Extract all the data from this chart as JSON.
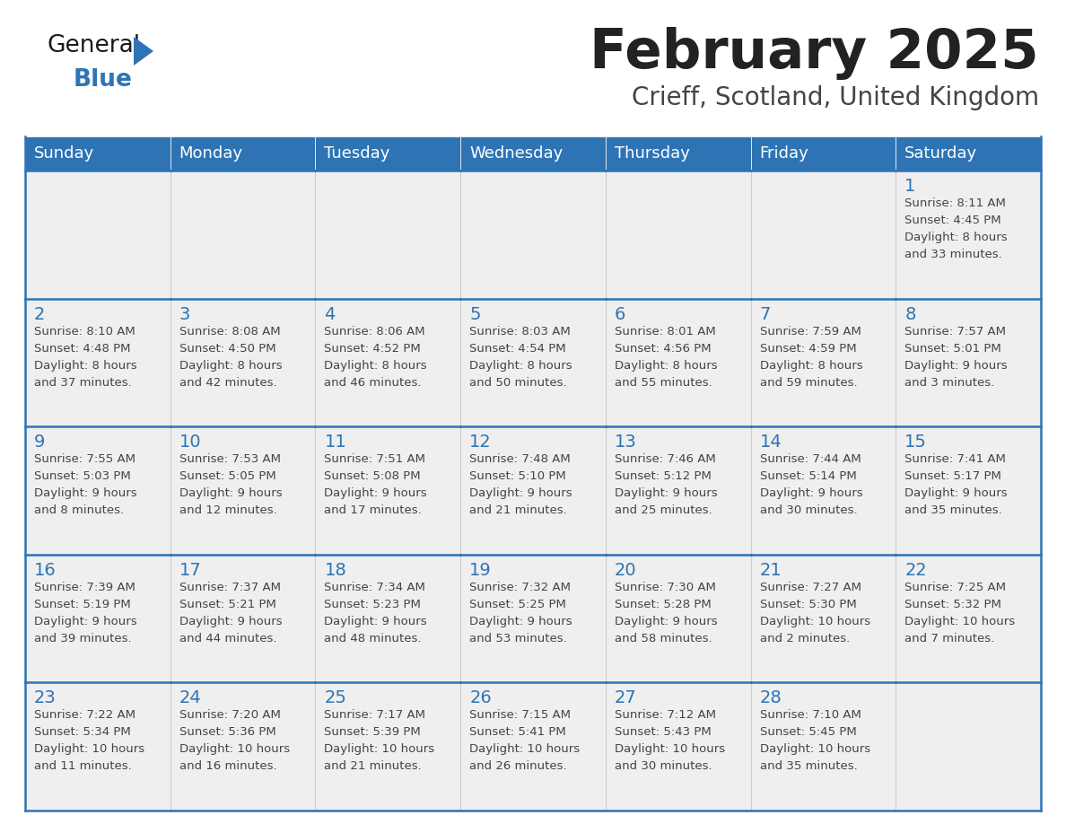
{
  "title": "February 2025",
  "subtitle": "Crieff, Scotland, United Kingdom",
  "days_of_week": [
    "Sunday",
    "Monday",
    "Tuesday",
    "Wednesday",
    "Thursday",
    "Friday",
    "Saturday"
  ],
  "header_bg": "#2E74B5",
  "header_text": "#FFFFFF",
  "cell_bg_light": "#EFEFEF",
  "cell_border": "#2E74B5",
  "day_num_color": "#2E74B5",
  "text_color": "#444444",
  "title_color": "#222222",
  "subtitle_color": "#444444",
  "calendar_data": [
    [
      {
        "day": null,
        "sunrise": null,
        "sunset": null,
        "daylight": null
      },
      {
        "day": null,
        "sunrise": null,
        "sunset": null,
        "daylight": null
      },
      {
        "day": null,
        "sunrise": null,
        "sunset": null,
        "daylight": null
      },
      {
        "day": null,
        "sunrise": null,
        "sunset": null,
        "daylight": null
      },
      {
        "day": null,
        "sunrise": null,
        "sunset": null,
        "daylight": null
      },
      {
        "day": null,
        "sunrise": null,
        "sunset": null,
        "daylight": null
      },
      {
        "day": 1,
        "sunrise": "8:11 AM",
        "sunset": "4:45 PM",
        "daylight": "8 hours\nand 33 minutes."
      }
    ],
    [
      {
        "day": 2,
        "sunrise": "8:10 AM",
        "sunset": "4:48 PM",
        "daylight": "8 hours\nand 37 minutes."
      },
      {
        "day": 3,
        "sunrise": "8:08 AM",
        "sunset": "4:50 PM",
        "daylight": "8 hours\nand 42 minutes."
      },
      {
        "day": 4,
        "sunrise": "8:06 AM",
        "sunset": "4:52 PM",
        "daylight": "8 hours\nand 46 minutes."
      },
      {
        "day": 5,
        "sunrise": "8:03 AM",
        "sunset": "4:54 PM",
        "daylight": "8 hours\nand 50 minutes."
      },
      {
        "day": 6,
        "sunrise": "8:01 AM",
        "sunset": "4:56 PM",
        "daylight": "8 hours\nand 55 minutes."
      },
      {
        "day": 7,
        "sunrise": "7:59 AM",
        "sunset": "4:59 PM",
        "daylight": "8 hours\nand 59 minutes."
      },
      {
        "day": 8,
        "sunrise": "7:57 AM",
        "sunset": "5:01 PM",
        "daylight": "9 hours\nand 3 minutes."
      }
    ],
    [
      {
        "day": 9,
        "sunrise": "7:55 AM",
        "sunset": "5:03 PM",
        "daylight": "9 hours\nand 8 minutes."
      },
      {
        "day": 10,
        "sunrise": "7:53 AM",
        "sunset": "5:05 PM",
        "daylight": "9 hours\nand 12 minutes."
      },
      {
        "day": 11,
        "sunrise": "7:51 AM",
        "sunset": "5:08 PM",
        "daylight": "9 hours\nand 17 minutes."
      },
      {
        "day": 12,
        "sunrise": "7:48 AM",
        "sunset": "5:10 PM",
        "daylight": "9 hours\nand 21 minutes."
      },
      {
        "day": 13,
        "sunrise": "7:46 AM",
        "sunset": "5:12 PM",
        "daylight": "9 hours\nand 25 minutes."
      },
      {
        "day": 14,
        "sunrise": "7:44 AM",
        "sunset": "5:14 PM",
        "daylight": "9 hours\nand 30 minutes."
      },
      {
        "day": 15,
        "sunrise": "7:41 AM",
        "sunset": "5:17 PM",
        "daylight": "9 hours\nand 35 minutes."
      }
    ],
    [
      {
        "day": 16,
        "sunrise": "7:39 AM",
        "sunset": "5:19 PM",
        "daylight": "9 hours\nand 39 minutes."
      },
      {
        "day": 17,
        "sunrise": "7:37 AM",
        "sunset": "5:21 PM",
        "daylight": "9 hours\nand 44 minutes."
      },
      {
        "day": 18,
        "sunrise": "7:34 AM",
        "sunset": "5:23 PM",
        "daylight": "9 hours\nand 48 minutes."
      },
      {
        "day": 19,
        "sunrise": "7:32 AM",
        "sunset": "5:25 PM",
        "daylight": "9 hours\nand 53 minutes."
      },
      {
        "day": 20,
        "sunrise": "7:30 AM",
        "sunset": "5:28 PM",
        "daylight": "9 hours\nand 58 minutes."
      },
      {
        "day": 21,
        "sunrise": "7:27 AM",
        "sunset": "5:30 PM",
        "daylight": "10 hours\nand 2 minutes."
      },
      {
        "day": 22,
        "sunrise": "7:25 AM",
        "sunset": "5:32 PM",
        "daylight": "10 hours\nand 7 minutes."
      }
    ],
    [
      {
        "day": 23,
        "sunrise": "7:22 AM",
        "sunset": "5:34 PM",
        "daylight": "10 hours\nand 11 minutes."
      },
      {
        "day": 24,
        "sunrise": "7:20 AM",
        "sunset": "5:36 PM",
        "daylight": "10 hours\nand 16 minutes."
      },
      {
        "day": 25,
        "sunrise": "7:17 AM",
        "sunset": "5:39 PM",
        "daylight": "10 hours\nand 21 minutes."
      },
      {
        "day": 26,
        "sunrise": "7:15 AM",
        "sunset": "5:41 PM",
        "daylight": "10 hours\nand 26 minutes."
      },
      {
        "day": 27,
        "sunrise": "7:12 AM",
        "sunset": "5:43 PM",
        "daylight": "10 hours\nand 30 minutes."
      },
      {
        "day": 28,
        "sunrise": "7:10 AM",
        "sunset": "5:45 PM",
        "daylight": "10 hours\nand 35 minutes."
      },
      {
        "day": null,
        "sunrise": null,
        "sunset": null,
        "daylight": null
      }
    ]
  ],
  "logo_text_general": "General",
  "logo_text_blue": "Blue",
  "logo_general_color": "#1a1a1a",
  "logo_blue_color": "#2E74B5",
  "logo_triangle_color": "#2E74B5"
}
